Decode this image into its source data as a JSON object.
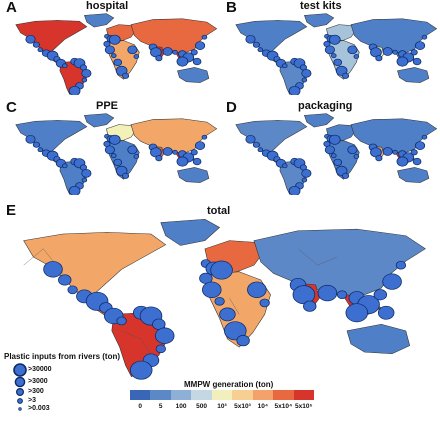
{
  "panels": [
    {
      "letter": "A",
      "title": "hospital"
    },
    {
      "letter": "B",
      "title": "test kits"
    },
    {
      "letter": "C",
      "title": "PPE"
    },
    {
      "letter": "D",
      "title": "packaging"
    },
    {
      "letter": "E",
      "title": "total"
    }
  ],
  "colors": {
    "ocean": "#ffffff",
    "land_low": "#4f7fc6",
    "land_mid": "#a7c3d9",
    "land_yellow": "#f4f1b8",
    "land_orange": "#f2a768",
    "land_red": "#d7342b",
    "bubble_fill": "#3d6fd1",
    "bubble_stroke": "#0d2b66"
  },
  "bubble_legend": {
    "title": "Plastic inputs from rivers (ton)",
    "items": [
      ">30000",
      ">3000",
      ">300",
      ">3",
      ">0.003"
    ]
  },
  "colorbar": {
    "title": "MMPW generation (ton)",
    "ticks": [
      "0",
      "5",
      "100",
      "500",
      "10³",
      "5x10³",
      "10⁴",
      "5x10⁴",
      "5x10⁵"
    ],
    "colors": [
      "#3a66b8",
      "#5d88c8",
      "#8fb0d6",
      "#c4d8e4",
      "#f1efbe",
      "#f7cf93",
      "#f2a26a",
      "#e8683f",
      "#d7342b"
    ]
  }
}
